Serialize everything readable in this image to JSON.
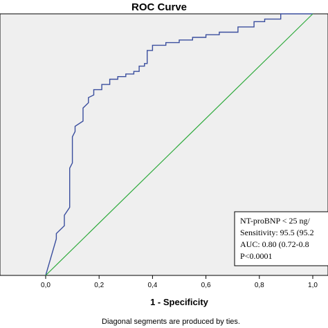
{
  "chart_data": {
    "type": "line",
    "title": "ROC Curve",
    "xlabel": "1 - Specificity",
    "ylabel": "",
    "xlim": [
      0,
      1
    ],
    "ylim": [
      0,
      1
    ],
    "x_ticks": [
      "0,0",
      "0,2",
      "0,4",
      "0,6",
      "0,8",
      "1,0"
    ],
    "grid": false,
    "background": "#efefef",
    "series": [
      {
        "color": "#3a4e9e",
        "x": [
          0,
          0.04,
          0.04,
          0.07,
          0.07,
          0.09,
          0.09,
          0.1,
          0.1,
          0.11,
          0.11,
          0.14,
          0.14,
          0.16,
          0.16,
          0.18,
          0.18,
          0.21,
          0.21,
          0.24,
          0.24,
          0.27,
          0.27,
          0.3,
          0.3,
          0.33,
          0.33,
          0.35,
          0.35,
          0.37,
          0.37,
          0.38,
          0.38,
          0.4,
          0.4,
          0.45,
          0.45,
          0.5,
          0.5,
          0.55,
          0.55,
          0.6,
          0.6,
          0.65,
          0.65,
          0.72,
          0.72,
          0.78,
          0.78,
          0.82,
          0.82,
          0.88,
          0.88,
          1
        ],
        "y": [
          0,
          0.14,
          0.16,
          0.19,
          0.23,
          0.26,
          0.41,
          0.43,
          0.53,
          0.55,
          0.57,
          0.59,
          0.64,
          0.66,
          0.68,
          0.69,
          0.71,
          0.71,
          0.73,
          0.73,
          0.75,
          0.75,
          0.76,
          0.76,
          0.77,
          0.77,
          0.78,
          0.78,
          0.8,
          0.8,
          0.81,
          0.81,
          0.86,
          0.86,
          0.88,
          0.88,
          0.89,
          0.89,
          0.9,
          0.9,
          0.91,
          0.91,
          0.92,
          0.92,
          0.93,
          0.93,
          0.95,
          0.95,
          0.97,
          0.97,
          0.98,
          0.98,
          1,
          1
        ]
      },
      {
        "color": "#2eaa3c",
        "x": [
          0,
          1
        ],
        "y": [
          0,
          1
        ]
      }
    ],
    "annotation": [
      "NT-proBNP < 25 ng/",
      "Sensitivity: 95.5 (95.2",
      "AUC: 0.80 (0.72-0.8",
      "P<0.0001"
    ],
    "footnote": "Diagonal segments are produced by ties."
  }
}
